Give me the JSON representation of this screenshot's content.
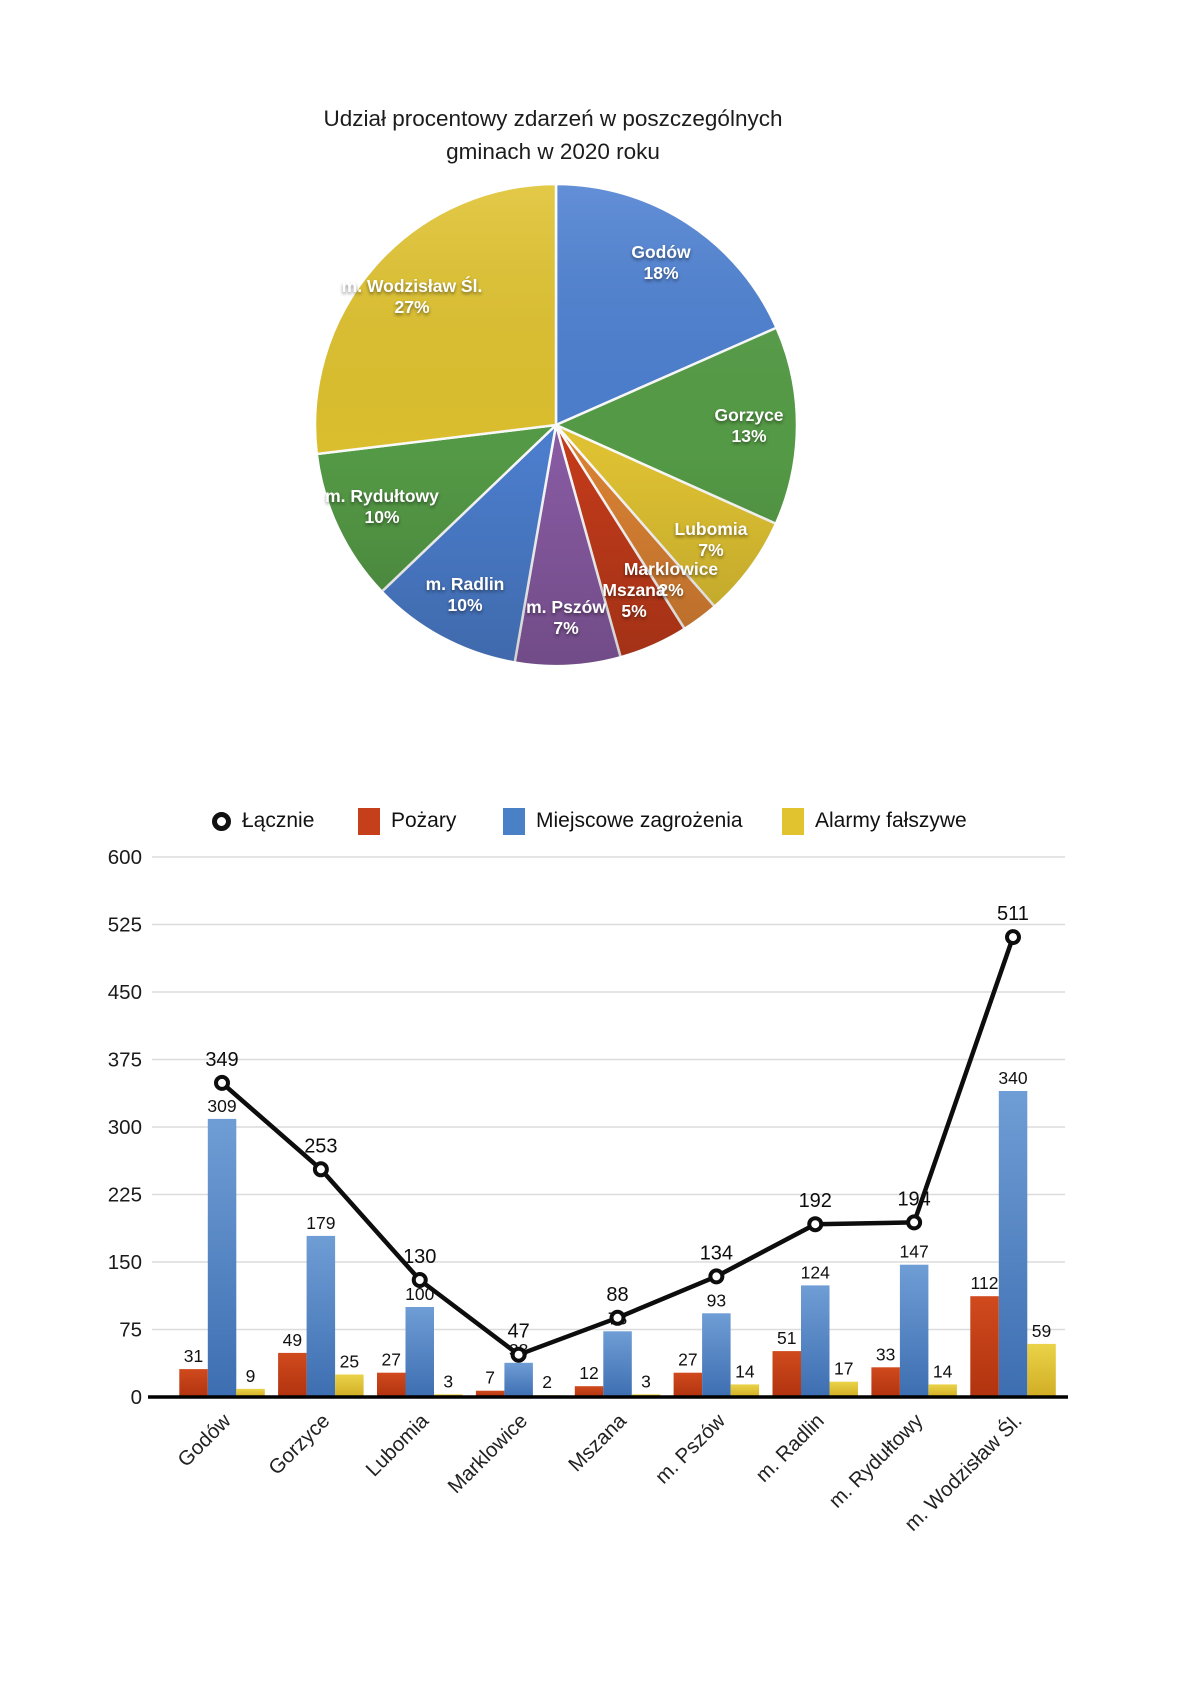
{
  "page_title": "Udział procentowy zdarzeń w poszczególnych gminach w 2020 roku",
  "colors": {
    "background": "#ffffff",
    "pie_blue": "#4D80D1",
    "pie_green": "#569D47",
    "pie_yellow": "#E3C533",
    "pie_orange": "#DE8434",
    "pie_red": "#C63C1B",
    "pie_purple": "#8A5CA5",
    "pie_gold": "#DFC22F",
    "bar_red": "#C43C16",
    "bar_blue": "#4A80C6",
    "bar_yellow": "#E2C633",
    "line_black": "#111111",
    "gridline": "#dcdcdc"
  },
  "chart_data": [
    {
      "type": "pie",
      "title": "Udział procentowy zdarzeń w poszczególnych gminach w 2020 roku",
      "title_lines": [
        "Udział procentowy zdarzeń w poszczególnych",
        "gminach w 2020 roku"
      ],
      "slices": [
        {
          "label": "Godów",
          "pct": 18,
          "pct_label": "18%",
          "value": 349,
          "color": "#4D80D1"
        },
        {
          "label": "Gorzyce",
          "pct": 13,
          "pct_label": "13%",
          "value": 253,
          "color": "#569D47"
        },
        {
          "label": "Lubomia",
          "pct": 7,
          "pct_label": "7%",
          "value": 130,
          "color": "#E3C533"
        },
        {
          "label": "Marklowice",
          "pct": 2,
          "pct_label": "2%",
          "value": 47,
          "color": "#DE8434"
        },
        {
          "label": "Mszana",
          "pct": 5,
          "pct_label": "5%",
          "value": 88,
          "color": "#C63C1B"
        },
        {
          "label": "m. Pszów",
          "pct": 7,
          "pct_label": "7%",
          "value": 134,
          "color": "#8A5CA5"
        },
        {
          "label": "m. Radlin",
          "pct": 10,
          "pct_label": "10%",
          "value": 192,
          "color": "#4D80D1"
        },
        {
          "label": "m. Rydułtowy",
          "pct": 10,
          "pct_label": "10%",
          "value": 194,
          "color": "#569D47"
        },
        {
          "label": "m. Wodzisław Śl.",
          "pct": 27,
          "pct_label": "27%",
          "value": 511,
          "color": "#DFC22F"
        }
      ]
    },
    {
      "type": "bar",
      "subtype": "grouped-bar-with-line",
      "categories": [
        "Godów",
        "Gorzyce",
        "Lubomia",
        "Marklowice",
        "Mszana",
        "m. Pszów",
        "m. Radlin",
        "m. Rydułtowy",
        "m. Wodzisław Śl."
      ],
      "series": [
        {
          "name": "Pożary",
          "color": "#C43C16",
          "values": [
            31,
            49,
            27,
            7,
            12,
            27,
            51,
            33,
            112
          ]
        },
        {
          "name": "Miejscowe zagrożenia",
          "color": "#4A80C6",
          "values": [
            309,
            179,
            100,
            38,
            73,
            93,
            124,
            147,
            340
          ]
        },
        {
          "name": "Alarmy fałszywe",
          "color": "#E2C633",
          "values": [
            9,
            25,
            3,
            2,
            3,
            14,
            17,
            14,
            59
          ]
        }
      ],
      "line_series": {
        "name": "Łącznie",
        "color": "#111111",
        "values": [
          349,
          253,
          130,
          47,
          88,
          134,
          192,
          194,
          511
        ]
      },
      "yticks": [
        0,
        75,
        150,
        225,
        300,
        375,
        450,
        525,
        600
      ],
      "ylim": [
        0,
        600
      ],
      "grid": true,
      "legend_position": "top",
      "x_label_rotation": -45
    }
  ]
}
